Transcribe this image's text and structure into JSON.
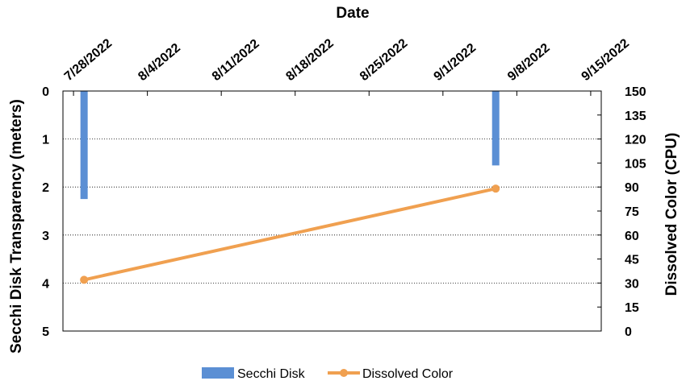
{
  "chart_data": {
    "type": "bar+line",
    "title": "",
    "xlabel": "Date",
    "ylabel_left": "Secchi Disk Transparency (meters)",
    "ylabel_right": "Dissolved Color (CPU)",
    "x_ticks": [
      "7/28/2022",
      "8/4/2022",
      "8/11/2022",
      "8/18/2022",
      "8/25/2022",
      "9/1/2022",
      "9/8/2022",
      "9/15/2022"
    ],
    "y_left_ticks": [
      "0",
      "1",
      "2",
      "3",
      "4",
      "5"
    ],
    "y_left_range": [
      0,
      5
    ],
    "y_left_reversed": true,
    "y_right_ticks": [
      "0",
      "15",
      "30",
      "45",
      "60",
      "75",
      "90",
      "105",
      "120",
      "135",
      "150"
    ],
    "y_right_range": [
      0,
      150
    ],
    "grid": "horizontal dotted",
    "legend_position": "bottom",
    "series": [
      {
        "name": "Secchi Disk",
        "kind": "bar",
        "axis": "left",
        "color": "#5B8FD4",
        "points": [
          {
            "date": "7/29/2022",
            "value": 2.25
          },
          {
            "date": "9/6/2022",
            "value": 1.55
          }
        ]
      },
      {
        "name": "Dissolved Color",
        "kind": "line",
        "axis": "right",
        "color": "#F0A050",
        "points": [
          {
            "date": "7/29/2022",
            "value": 32
          },
          {
            "date": "9/6/2022",
            "value": 89
          }
        ]
      }
    ]
  }
}
